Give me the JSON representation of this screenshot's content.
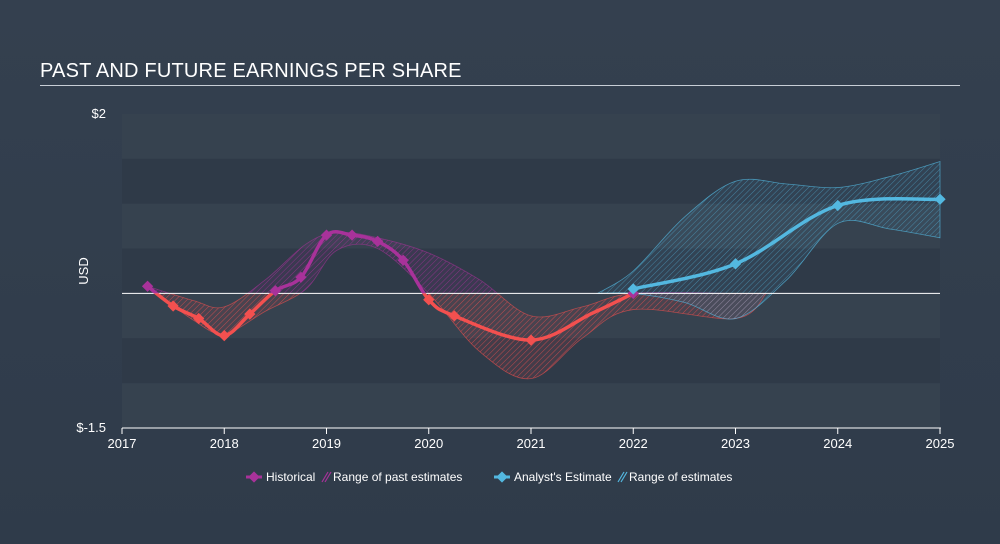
{
  "title": "PAST AND FUTURE EARNINGS PER SHARE",
  "chart_data": {
    "type": "line",
    "title": "PAST AND FUTURE EARNINGS PER SHARE",
    "ylabel": "USD",
    "xlabel": "",
    "xlim": [
      2017.0,
      2025.0
    ],
    "ylim": [
      -1.5,
      2.0
    ],
    "y_tick_labels": [
      {
        "value": 2.0,
        "label": "$2"
      },
      {
        "value": -1.5,
        "label": "$-1.5"
      }
    ],
    "x_ticks": [
      2017,
      2018,
      2019,
      2020,
      2021,
      2022,
      2023,
      2024,
      2025
    ],
    "grid": "horizontal bands",
    "colors": {
      "positive": "#a8329a",
      "negative": "#f3504f",
      "estimate": "#53b8e0",
      "zero_line": "#ffffff",
      "band_dark": "#2f3a48",
      "band_light": "#36424f"
    },
    "series": [
      {
        "name": "Historical",
        "x": [
          2017.25,
          2017.5,
          2017.75,
          2018.0,
          2018.25,
          2018.5,
          2018.75,
          2019.0,
          2019.25,
          2019.5,
          2019.75,
          2020.0,
          2020.25,
          2021.0,
          2021.6,
          2022.0
        ],
        "y": [
          0.08,
          -0.14,
          -0.28,
          -0.47,
          -0.23,
          0.03,
          0.18,
          0.65,
          0.65,
          0.58,
          0.37,
          -0.07,
          -0.25,
          -0.52,
          -0.22,
          0.0
        ]
      },
      {
        "name": "Range of past estimates",
        "x": [
          2017.25,
          2017.7,
          2018.0,
          2018.4,
          2018.8,
          2019.1,
          2019.5,
          2020.0,
          2020.5,
          2021.0,
          2021.5,
          2022.0,
          2023.0,
          2023.3
        ],
        "upper": [
          0.08,
          -0.08,
          -0.15,
          0.15,
          0.55,
          0.68,
          0.62,
          0.45,
          0.15,
          -0.25,
          -0.15,
          0.0,
          0.0,
          0.0
        ],
        "lower": [
          0.08,
          -0.3,
          -0.45,
          -0.2,
          0.05,
          0.48,
          0.5,
          0.0,
          -0.65,
          -0.95,
          -0.5,
          -0.18,
          -0.28,
          0.0
        ]
      },
      {
        "name": "Analyst's Estimate",
        "x": [
          2022.0,
          2023.0,
          2024.0,
          2025.0
        ],
        "y": [
          0.05,
          0.33,
          0.98,
          1.05
        ]
      },
      {
        "name": "Range of estimates",
        "x": [
          2021.65,
          2022.0,
          2022.5,
          2023.0,
          2023.5,
          2024.0,
          2024.5,
          2025.0
        ],
        "upper": [
          0.0,
          0.25,
          0.85,
          1.25,
          1.22,
          1.18,
          1.3,
          1.47
        ],
        "lower": [
          0.0,
          0.0,
          -0.1,
          -0.28,
          0.15,
          0.78,
          0.72,
          0.62
        ]
      }
    ],
    "legend": {
      "placement": "bottom-center",
      "items": [
        "Historical",
        "Range of past estimates",
        "Analyst's Estimate",
        "Range of estimates"
      ]
    }
  }
}
